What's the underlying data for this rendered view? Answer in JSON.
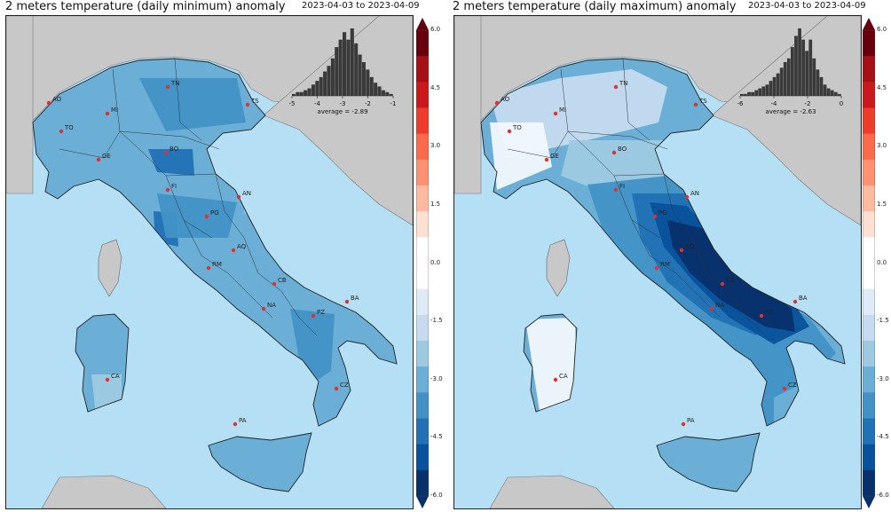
{
  "colors": {
    "sea": "#b5dff5",
    "land_out": "#c8c8c8",
    "hist_bar": "#3a3a3a",
    "city_dot": "#e03030"
  },
  "panels": [
    {
      "id": "min",
      "title": "2 meters temperature (daily minimum) anomaly",
      "date_range": "2023-04-03 to 2023-04-09",
      "histogram": {
        "ticks": [
          "-5",
          "-4",
          "-3",
          "-2",
          "-1"
        ],
        "bars": [
          1,
          2,
          2,
          3,
          4,
          6,
          8,
          10,
          13,
          16,
          20,
          26,
          30,
          34,
          30,
          36,
          28,
          22,
          18,
          14,
          10,
          7,
          5,
          3,
          2,
          1
        ],
        "average_text": "average = -2.89"
      },
      "cities": [
        "AO",
        "TO",
        "MI",
        "TN",
        "TS",
        "GE",
        "BO",
        "FI",
        "AN",
        "PG",
        "AQ",
        "RM",
        "CB",
        "NA",
        "BA",
        "PZ",
        "CA",
        "CZ",
        "PA"
      ],
      "field_tone": "min"
    },
    {
      "id": "max",
      "title": "2 meters temperature (daily maximum) anomaly",
      "date_range": "2023-04-03 to 2023-04-09",
      "histogram": {
        "ticks": [
          "-6",
          "-4",
          "-2",
          "0"
        ],
        "bars": [
          1,
          1,
          2,
          2,
          3,
          4,
          5,
          6,
          8,
          10,
          12,
          15,
          18,
          20,
          26,
          32,
          36,
          30,
          24,
          30,
          20,
          14,
          10,
          6,
          4,
          3,
          2,
          1
        ],
        "average_text": "average = -2.63"
      },
      "cities": [
        "AO",
        "TO",
        "MI",
        "TN",
        "TS",
        "GE",
        "BO",
        "FI",
        "AN",
        "PG",
        "AQ",
        "RM",
        "CB",
        "NA",
        "BA",
        "PZ",
        "CA",
        "CZ",
        "PA"
      ],
      "field_tone": "max"
    }
  ],
  "colorbar": {
    "ticks": [
      "6.0",
      "4.5",
      "3.0",
      "1.5",
      "0.0",
      "-1.5",
      "-3.0",
      "-4.5",
      "-6.0"
    ],
    "colors": [
      "#67000d",
      "#a50f15",
      "#cb181d",
      "#ef3b2c",
      "#fb6a4a",
      "#fc9272",
      "#fcbba1",
      "#fee0d2",
      "#ffffff",
      "#ffffff",
      "#deebf7",
      "#c6dbef",
      "#9ecae1",
      "#6baed6",
      "#4292c6",
      "#2171b5",
      "#08519c",
      "#08306b"
    ]
  }
}
